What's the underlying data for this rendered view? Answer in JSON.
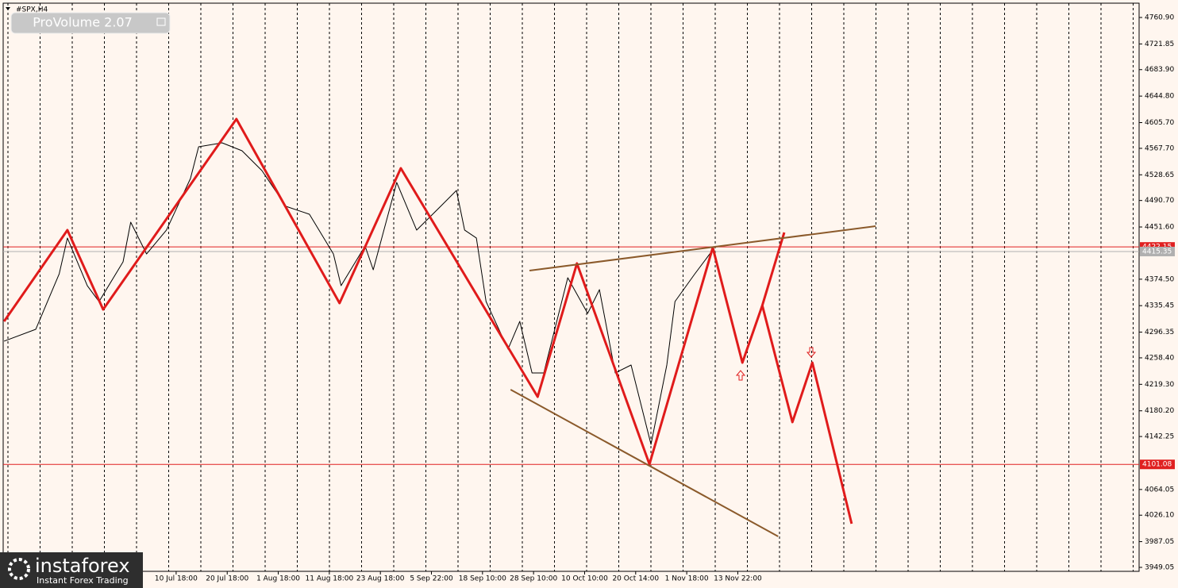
{
  "chart_data": {
    "type": "line",
    "title": "#SPX,H4",
    "indicator": "ProVolume 2.07",
    "watermark": {
      "brand": "instaforex",
      "tagline": "Instant Forex Trading"
    },
    "ylim": [
      3943.2,
      4786.7
    ],
    "yticks": [
      {
        "value": 4760.9,
        "label": "4760.90"
      },
      {
        "value": 4721.85,
        "label": "4721.85"
      },
      {
        "value": 4683.9,
        "label": "4683.90"
      },
      {
        "value": 4644.8,
        "label": "4644.80"
      },
      {
        "value": 4605.7,
        "label": "4605.70"
      },
      {
        "value": 4567.7,
        "label": "4567.70"
      },
      {
        "value": 4528.65,
        "label": "4528.65"
      },
      {
        "value": 4490.7,
        "label": "4490.70"
      },
      {
        "value": 4451.6,
        "label": "4451.60"
      },
      {
        "value": 4374.5,
        "label": "4374.50"
      },
      {
        "value": 4335.45,
        "label": "4335.45"
      },
      {
        "value": 4296.35,
        "label": "4296.35"
      },
      {
        "value": 4258.4,
        "label": "4258.40"
      },
      {
        "value": 4219.3,
        "label": "4219.30"
      },
      {
        "value": 4180.2,
        "label": "4180.20"
      },
      {
        "value": 4142.25,
        "label": "4142.25"
      },
      {
        "value": 4064.05,
        "label": "4064.05"
      },
      {
        "value": 4026.1,
        "label": "4026.10"
      },
      {
        "value": 3987.05,
        "label": "3987.05"
      },
      {
        "value": 3949.05,
        "label": "3949.05"
      }
    ],
    "xlim": [
      -3.45,
      18.86
    ],
    "xticks": [
      {
        "value": 0,
        "label": "10 Jul 18:00"
      },
      {
        "value": 1,
        "label": "20 Jul 18:00"
      },
      {
        "value": 2,
        "label": "1 Aug 18:00"
      },
      {
        "value": 3,
        "label": "11 Aug 18:00"
      },
      {
        "value": 4,
        "label": "23 Aug 18:00"
      },
      {
        "value": 5,
        "label": "5 Sep 22:00"
      },
      {
        "value": 6,
        "label": "18 Sep 10:00"
      },
      {
        "value": 7,
        "label": "28 Sep 10:00"
      },
      {
        "value": 8,
        "label": "10 Oct 10:00"
      },
      {
        "value": 9,
        "label": "20 Oct 14:00"
      },
      {
        "value": 10,
        "label": "1 Nov 18:00"
      },
      {
        "value": 11,
        "label": "13 Nov 22:00"
      }
    ],
    "levels": [
      {
        "value": 4422.15,
        "label": "4422.15",
        "color": "#e02020"
      },
      {
        "value": 4415.35,
        "label": "4415.35",
        "color": "#b0b0b0"
      },
      {
        "value": 4101.08,
        "label": "4101.08",
        "color": "#e02020"
      }
    ],
    "series": [
      {
        "color": "#000000",
        "width": 1,
        "x": [
          -3.37,
          -2.75,
          -2.29,
          -2.13,
          -1.74,
          -1.51,
          -1.04,
          -0.89,
          -0.58,
          -0.19,
          0.28,
          0.44,
          0.9,
          1.29,
          1.68,
          2.15,
          2.61,
          3.08,
          3.23,
          3.7,
          3.86,
          4.32,
          4.71,
          5.18,
          5.49,
          5.65,
          5.88,
          6.07,
          6.5,
          6.73,
          6.97,
          7.2,
          7.67,
          8.06,
          8.29,
          8.6,
          8.91,
          9.3,
          9.61,
          9.77,
          10.16,
          10.51
        ],
        "values": [
          4283.0,
          4300.5,
          4382.5,
          4435.3,
          4364.9,
          4341.5,
          4400.1,
          4458.7,
          4411.8,
          4447.0,
          4523.1,
          4570.0,
          4575.8,
          4564.1,
          4534.8,
          4482.1,
          4470.4,
          4411.8,
          4364.9,
          4423.5,
          4388.4,
          4517.3,
          4447.0,
          4482.1,
          4505.5,
          4447.0,
          4435.3,
          4341.5,
          4271.3,
          4312.2,
          4236.1,
          4236.1,
          4376.7,
          4324.0,
          4359.1,
          4236.1,
          4247.8,
          4130.7,
          4247.8,
          4341.5,
          4382.5,
          4417.7
        ]
      },
      {
        "color": "#e01b1b",
        "width": 3,
        "x": [
          -3.37,
          -2.13,
          -1.43,
          1.18,
          3.2,
          4.4,
          7.08,
          7.85,
          9.27,
          10.51,
          11.09,
          11.48,
          11.91
        ],
        "values": [
          4312.2,
          4447.0,
          4329.8,
          4611.0,
          4339.2,
          4538.3,
          4200.9,
          4397.8,
          4101.4,
          4421.2,
          4251.3,
          4335.7,
          4443.5
        ]
      },
      {
        "color": "#e01b1b",
        "width": 3,
        "x": [
          11.48,
          12.07,
          12.46,
          13.23
        ],
        "values": [
          4335.7,
          4163.5,
          4251.3,
          4013.5
        ]
      },
      {
        "color": "#8b5a2b",
        "width": 2,
        "x": [
          6.92,
          13.7
        ],
        "values": [
          4387.2,
          4452.8
        ]
      },
      {
        "color": "#8b5a2b",
        "width": 2,
        "x": [
          6.55,
          11.79
        ],
        "values": [
          4211.5,
          3994.8
        ]
      }
    ]
  }
}
